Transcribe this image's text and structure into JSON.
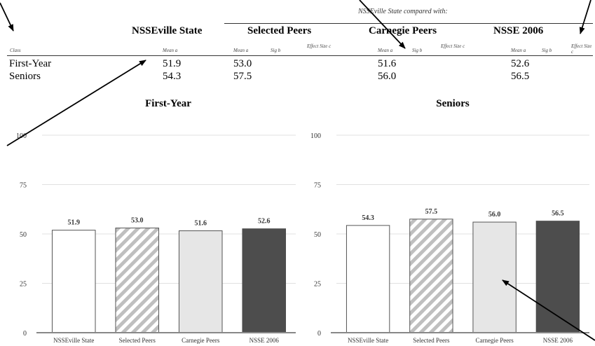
{
  "table": {
    "compared_with": "NSSEville State compared with:",
    "columns": {
      "institution": "NSSEville State",
      "peer1": "Selected Peers",
      "peer2": "Carnegie Peers",
      "peer3": "NSSE 2006"
    },
    "subheaders": {
      "class": "Class",
      "mean_a": "Mean a",
      "sig_b": "Sig b",
      "effect_c": "Effect Size c"
    },
    "rows": [
      {
        "label": "First-Year",
        "inst": "51.9",
        "sel": "53.0",
        "carn": "51.6",
        "nsse": "52.6"
      },
      {
        "label": "Seniors",
        "inst": "54.3",
        "sel": "57.5",
        "carn": "56.0",
        "nsse": "56.5"
      }
    ]
  },
  "chart_data": [
    {
      "type": "bar",
      "title": "First-Year",
      "categories": [
        "NSSEville State",
        "Selected Peers",
        "Carnegie Peers",
        "NSSE 2006"
      ],
      "values": [
        51.9,
        53.0,
        51.6,
        52.6
      ],
      "ylim": [
        0,
        100
      ],
      "yticks": [
        0,
        25,
        50,
        75,
        100
      ],
      "grid": true,
      "bar_styles": [
        "white",
        "hatched",
        "light-gray",
        "dark-gray"
      ],
      "colors": {
        "light_gray": "#e6e6e6",
        "dark_gray": "#4d4d4d",
        "hatch": "#bfbfbf",
        "grid": "#e0e0e0"
      }
    },
    {
      "type": "bar",
      "title": "Seniors",
      "categories": [
        "NSSEville State",
        "Selected Peers",
        "Carnegie Peers",
        "NSSE 2006"
      ],
      "values": [
        54.3,
        57.5,
        56.0,
        56.5
      ],
      "ylim": [
        0,
        100
      ],
      "yticks": [
        0,
        25,
        50,
        75,
        100
      ],
      "grid": true,
      "bar_styles": [
        "white",
        "hatched",
        "light-gray",
        "dark-gray"
      ],
      "colors": {
        "light_gray": "#e6e6e6",
        "dark_gray": "#4d4d4d",
        "hatch": "#bfbfbf",
        "grid": "#e0e0e0"
      }
    }
  ]
}
